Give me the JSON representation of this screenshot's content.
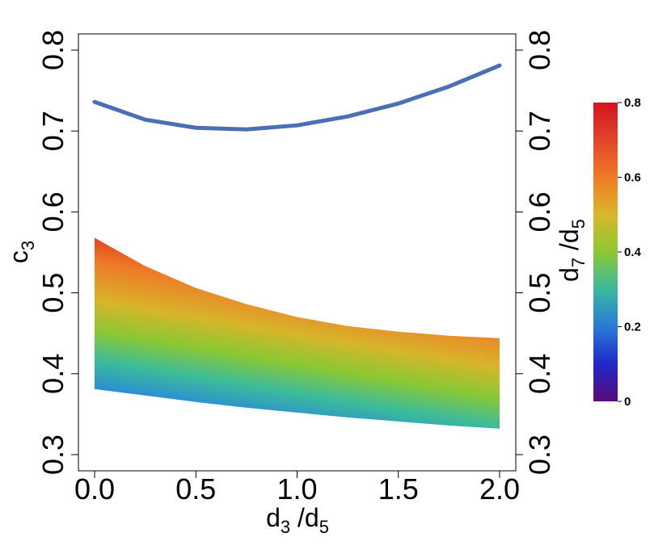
{
  "chart_data": {
    "type": "area",
    "xlabel": {
      "base": "d",
      "sub": "3",
      "rest": " /d",
      "sub2": "5"
    },
    "ylabel": {
      "base": "c",
      "sub": "3"
    },
    "y2label": {
      "base": "d",
      "sub": "7",
      "rest": " /d",
      "sub2": "5"
    },
    "xlim": [
      -0.08,
      2.08
    ],
    "ylim": [
      0.28,
      0.82
    ],
    "x_ticks": [
      "0.0",
      "0.5",
      "1.0",
      "1.5",
      "2.0"
    ],
    "y_ticks": [
      "0.3",
      "0.4",
      "0.5",
      "0.6",
      "0.7",
      "0.8"
    ],
    "y2_ticks": [
      "0.3",
      "0.4",
      "0.5",
      "0.6",
      "0.7",
      "0.8"
    ],
    "curve": {
      "color": "#4a6fb5",
      "x": [
        0.0,
        0.25,
        0.5,
        0.75,
        1.0,
        1.25,
        1.5,
        1.75,
        2.0
      ],
      "y": [
        0.736,
        0.714,
        0.704,
        0.702,
        0.707,
        0.718,
        0.734,
        0.755,
        0.781
      ]
    },
    "band": {
      "x": [
        0.0,
        0.25,
        0.5,
        0.75,
        1.0,
        1.25,
        1.5,
        1.75,
        2.0
      ],
      "upper": [
        0.568,
        0.533,
        0.506,
        0.486,
        0.47,
        0.459,
        0.452,
        0.447,
        0.444
      ],
      "lower": [
        0.381,
        0.373,
        0.365,
        0.358,
        0.352,
        0.346,
        0.341,
        0.336,
        0.332
      ],
      "color_by": "d7/d5"
    },
    "colorbar": {
      "ticks": [
        "0",
        "0.2",
        "0.4",
        "0.6",
        "0.8"
      ],
      "range": [
        0,
        0.8
      ],
      "stops": [
        "#5a0a7a",
        "#2028c8",
        "#2a7ad8",
        "#3ab8a0",
        "#8cc832",
        "#d8b82a",
        "#f07a24",
        "#e0452a",
        "#d4121e"
      ]
    }
  }
}
